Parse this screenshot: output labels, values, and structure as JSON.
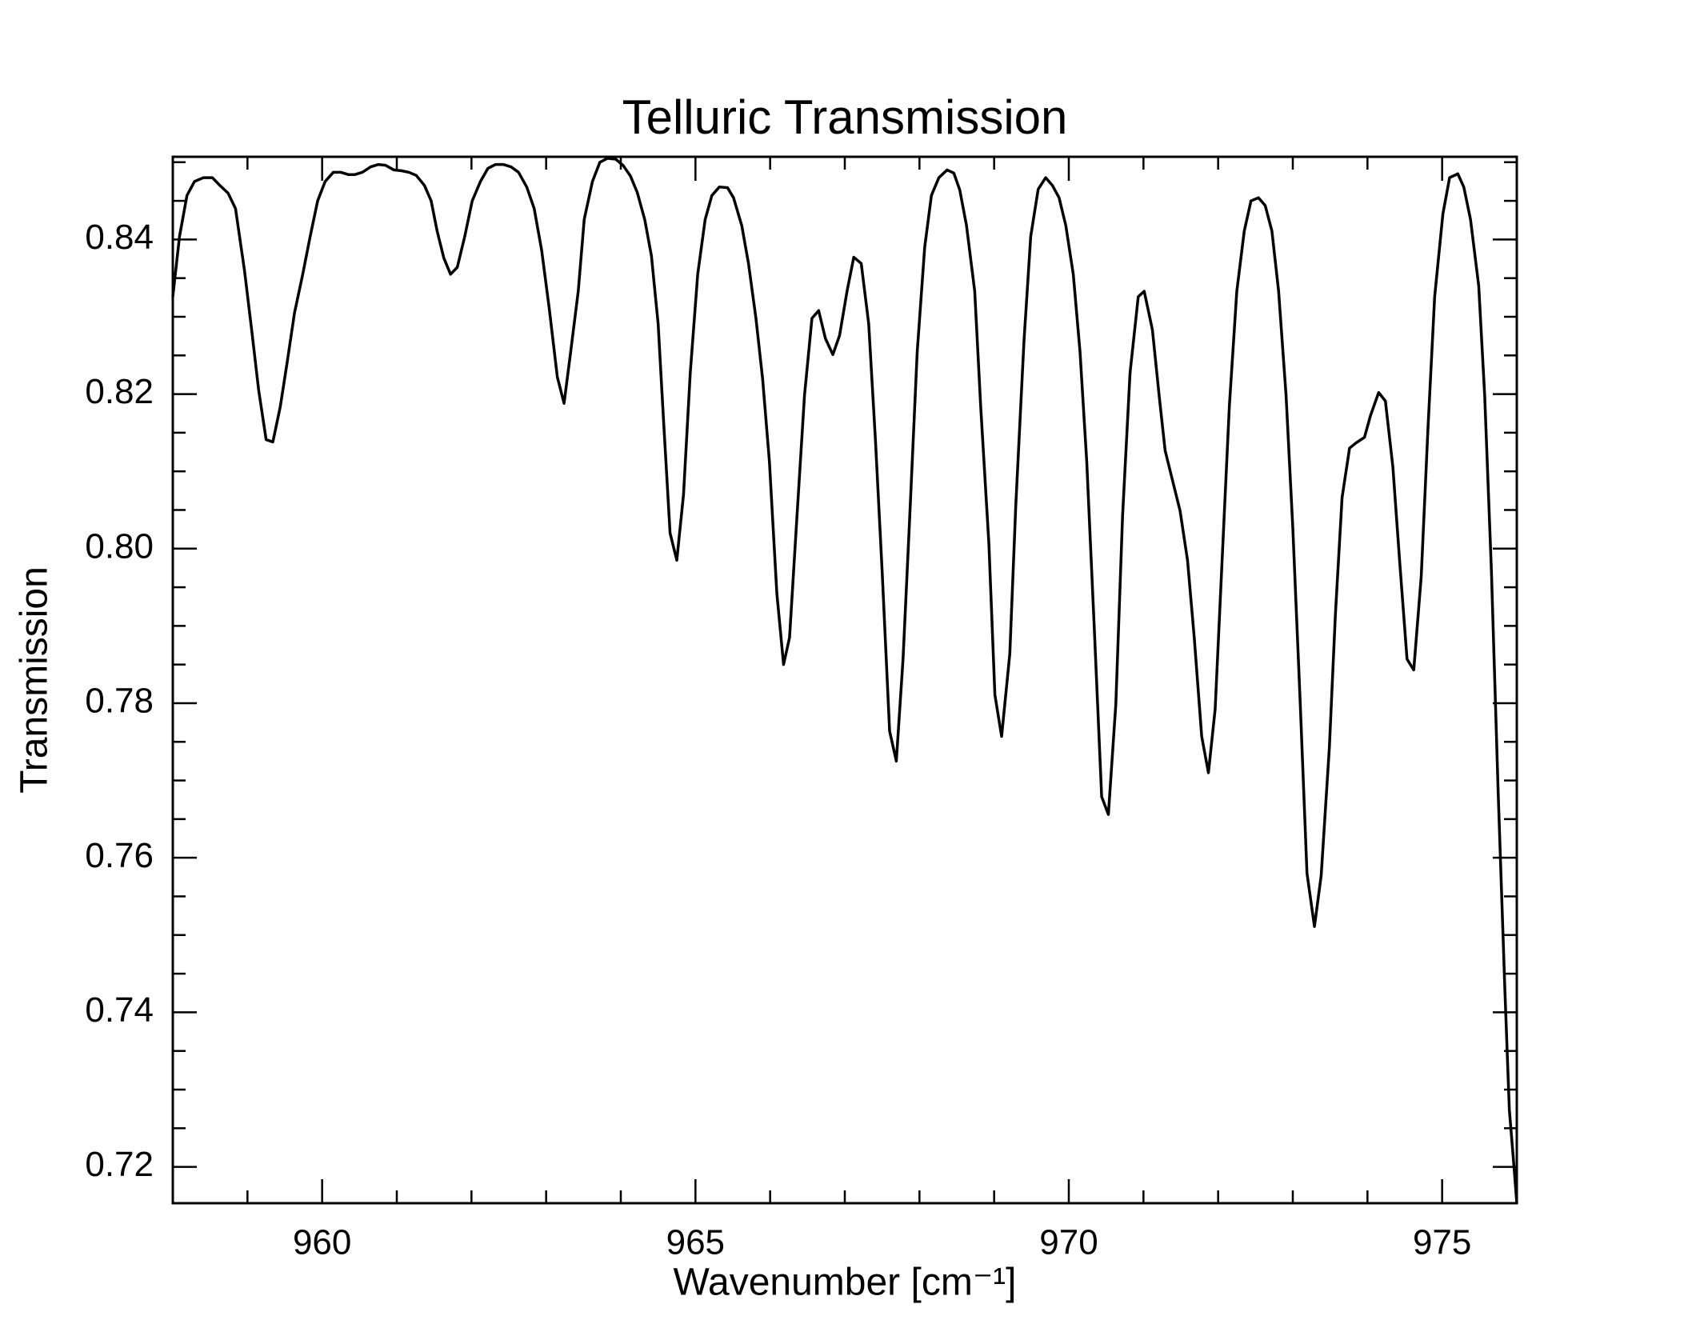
{
  "chart_data": {
    "type": "line",
    "title": "Telluric Transmission",
    "xlabel": "Wavenumber [cm⁻¹]",
    "ylabel": "Transmission",
    "color": "#000000",
    "xlim": [
      958,
      976
    ],
    "xticks": [
      960,
      965,
      970,
      975
    ],
    "xminorticks": [
      958,
      959,
      961,
      962,
      963,
      964,
      966,
      967,
      968,
      969,
      971,
      972,
      973,
      974,
      976
    ],
    "ylim": [
      0.7153,
      0.8507
    ],
    "yticks": [
      0.72,
      0.74,
      0.76,
      0.78,
      {
        "value": 0.8,
        "label": "0.80"
      },
      0.82,
      0.84
    ],
    "yminorticks": [
      0.725,
      0.73,
      0.735,
      0.745,
      0.75,
      0.755,
      0.765,
      0.77,
      0.775,
      0.785,
      0.79,
      0.795,
      0.805,
      0.81,
      0.815,
      0.825,
      0.83,
      0.835,
      0.845,
      0.85
    ],
    "x": [
      958.0,
      958.09,
      958.19,
      958.29,
      958.41,
      958.53,
      958.63,
      958.74,
      958.84,
      958.96,
      959.06,
      959.15,
      959.25,
      959.34,
      959.44,
      959.53,
      959.63,
      959.74,
      959.84,
      959.94,
      960.04,
      960.15,
      960.25,
      960.35,
      960.44,
      960.54,
      960.65,
      960.75,
      960.85,
      960.96,
      961.06,
      961.16,
      961.26,
      961.37,
      961.46,
      961.54,
      961.63,
      961.72,
      961.81,
      961.91,
      962.01,
      962.12,
      962.22,
      962.32,
      962.43,
      962.53,
      962.63,
      962.74,
      962.84,
      962.94,
      963.04,
      963.15,
      963.24,
      963.32,
      963.43,
      963.51,
      963.62,
      963.72,
      963.82,
      963.93,
      964.03,
      964.13,
      964.22,
      964.32,
      964.41,
      964.5,
      964.57,
      964.66,
      964.75,
      964.84,
      964.93,
      965.03,
      965.13,
      965.22,
      965.32,
      965.43,
      965.51,
      965.62,
      965.71,
      965.81,
      965.9,
      965.99,
      966.09,
      966.18,
      966.26,
      966.35,
      966.46,
      966.56,
      966.65,
      966.74,
      966.84,
      966.93,
      967.03,
      967.12,
      967.22,
      967.32,
      967.41,
      967.5,
      967.6,
      967.69,
      967.78,
      967.87,
      967.97,
      968.07,
      968.16,
      968.26,
      968.37,
      968.46,
      968.54,
      968.63,
      968.74,
      968.82,
      968.93,
      969.01,
      969.1,
      969.21,
      969.29,
      969.4,
      969.49,
      969.59,
      969.69,
      969.78,
      969.87,
      969.96,
      970.06,
      970.15,
      970.24,
      970.34,
      970.44,
      970.53,
      970.63,
      970.72,
      970.82,
      970.93,
      971.01,
      971.12,
      971.21,
      971.29,
      971.4,
      971.49,
      971.59,
      971.68,
      971.78,
      971.87,
      971.96,
      972.06,
      972.15,
      972.25,
      972.35,
      972.44,
      972.54,
      972.63,
      972.72,
      972.81,
      972.91,
      973.0,
      973.1,
      973.19,
      973.29,
      973.38,
      973.49,
      973.57,
      973.66,
      973.76,
      973.85,
      973.96,
      974.04,
      974.15,
      974.24,
      974.34,
      974.43,
      974.53,
      974.62,
      974.72,
      974.81,
      974.9,
      975.01,
      975.1,
      975.21,
      975.29,
      975.38,
      975.49,
      975.57,
      975.66,
      975.75,
      975.84,
      975.9,
      975.96,
      976.0
    ],
    "values": [
      0.8326,
      0.8404,
      0.8457,
      0.8475,
      0.848,
      0.848,
      0.847,
      0.846,
      0.844,
      0.836,
      0.828,
      0.8205,
      0.8141,
      0.8138,
      0.8184,
      0.824,
      0.8305,
      0.8355,
      0.8404,
      0.845,
      0.8475,
      0.8487,
      0.8487,
      0.8484,
      0.8484,
      0.8487,
      0.8494,
      0.8497,
      0.8496,
      0.849,
      0.8489,
      0.8487,
      0.8483,
      0.847,
      0.845,
      0.8411,
      0.8376,
      0.8355,
      0.8364,
      0.8404,
      0.845,
      0.8475,
      0.8492,
      0.8497,
      0.8497,
      0.8494,
      0.8487,
      0.8468,
      0.844,
      0.8386,
      0.8312,
      0.8222,
      0.8188,
      0.8248,
      0.8333,
      0.8426,
      0.8475,
      0.85,
      0.8505,
      0.8504,
      0.8496,
      0.8482,
      0.8461,
      0.8426,
      0.8379,
      0.8291,
      0.817,
      0.802,
      0.7985,
      0.807,
      0.8227,
      0.8355,
      0.8426,
      0.8457,
      0.8468,
      0.8467,
      0.8454,
      0.8418,
      0.8369,
      0.8298,
      0.8219,
      0.8113,
      0.7942,
      0.785,
      0.7885,
      0.8027,
      0.8198,
      0.8298,
      0.8308,
      0.8272,
      0.8251,
      0.8276,
      0.8333,
      0.8377,
      0.8369,
      0.8291,
      0.8141,
      0.7971,
      0.7764,
      0.7725,
      0.7857,
      0.8042,
      0.8255,
      0.839,
      0.8457,
      0.848,
      0.849,
      0.8486,
      0.8464,
      0.8418,
      0.8333,
      0.8184,
      0.8006,
      0.7811,
      0.7757,
      0.7864,
      0.8056,
      0.8269,
      0.8404,
      0.8465,
      0.848,
      0.847,
      0.8454,
      0.8418,
      0.8355,
      0.8255,
      0.8113,
      0.79,
      0.7679,
      0.7656,
      0.7799,
      0.8042,
      0.8227,
      0.8326,
      0.8333,
      0.8283,
      0.8198,
      0.8127,
      0.8084,
      0.8049,
      0.7985,
      0.7885,
      0.7757,
      0.771,
      0.7792,
      0.7999,
      0.8184,
      0.8333,
      0.8411,
      0.845,
      0.8454,
      0.8444,
      0.8411,
      0.8333,
      0.8198,
      0.8027,
      0.7799,
      0.758,
      0.7511,
      0.7577,
      0.7743,
      0.7914,
      0.8066,
      0.813,
      0.8137,
      0.8144,
      0.8172,
      0.8202,
      0.8191,
      0.8106,
      0.7985,
      0.7857,
      0.7843,
      0.7964,
      0.8155,
      0.8326,
      0.8433,
      0.848,
      0.8485,
      0.8468,
      0.8426,
      0.834,
      0.8198,
      0.7971,
      0.7686,
      0.743,
      0.7274,
      0.7203,
      0.7153
    ]
  }
}
